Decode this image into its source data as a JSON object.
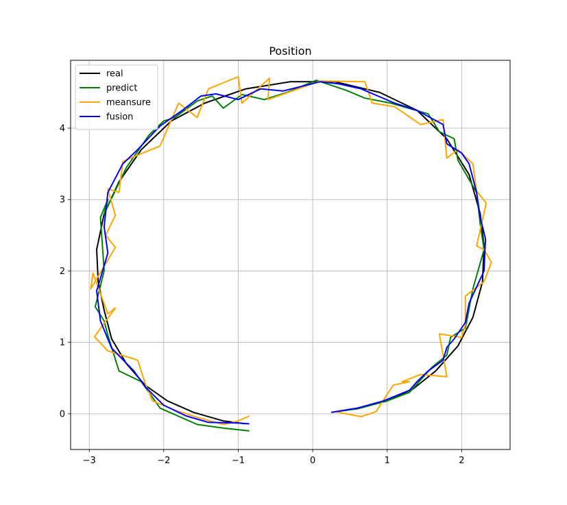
{
  "chart_data": {
    "type": "line",
    "title": "Position",
    "xlabel": "",
    "ylabel": "",
    "xlim": [
      -3.25,
      2.65
    ],
    "ylim": [
      -0.5,
      4.95
    ],
    "xticks": [
      -3,
      -2,
      -1,
      0,
      1,
      2
    ],
    "yticks": [
      0,
      1,
      2,
      3,
      4
    ],
    "grid": true,
    "legend_position": "upper-left",
    "series": [
      {
        "name": "real",
        "color": "#000000",
        "points": [
          [
            0.25,
            0.02
          ],
          [
            0.6,
            0.08
          ],
          [
            1.0,
            0.18
          ],
          [
            1.35,
            0.35
          ],
          [
            1.65,
            0.6
          ],
          [
            1.95,
            0.95
          ],
          [
            2.15,
            1.35
          ],
          [
            2.28,
            1.85
          ],
          [
            2.3,
            2.35
          ],
          [
            2.25,
            2.8
          ],
          [
            2.1,
            3.35
          ],
          [
            1.8,
            3.85
          ],
          [
            1.4,
            4.25
          ],
          [
            0.9,
            4.5
          ],
          [
            0.3,
            4.65
          ],
          [
            -0.3,
            4.65
          ],
          [
            -0.9,
            4.55
          ],
          [
            -1.45,
            4.35
          ],
          [
            -1.9,
            4.1
          ],
          [
            -2.3,
            3.7
          ],
          [
            -2.6,
            3.25
          ],
          [
            -2.8,
            2.8
          ],
          [
            -2.9,
            2.3
          ],
          [
            -2.88,
            1.85
          ],
          [
            -2.8,
            1.45
          ],
          [
            -2.7,
            1.05
          ],
          [
            -2.5,
            0.7
          ],
          [
            -2.25,
            0.4
          ],
          [
            -1.95,
            0.18
          ],
          [
            -1.6,
            0.02
          ],
          [
            -1.2,
            -0.1
          ],
          [
            -0.9,
            -0.14
          ]
        ]
      },
      {
        "name": "predict",
        "color": "#008000",
        "points": [
          [
            0.25,
            0.02
          ],
          [
            0.6,
            0.07
          ],
          [
            1.0,
            0.18
          ],
          [
            1.3,
            0.3
          ],
          [
            1.6,
            0.65
          ],
          [
            1.8,
            0.82
          ],
          [
            1.85,
            1.07
          ],
          [
            2.05,
            1.2
          ],
          [
            2.15,
            1.75
          ],
          [
            2.3,
            2.3
          ],
          [
            2.25,
            2.65
          ],
          [
            2.2,
            3.1
          ],
          [
            1.95,
            3.55
          ],
          [
            1.9,
            3.85
          ],
          [
            1.7,
            3.95
          ],
          [
            1.55,
            4.2
          ],
          [
            1.05,
            4.35
          ],
          [
            0.7,
            4.42
          ],
          [
            0.45,
            4.53
          ],
          [
            0.05,
            4.67
          ],
          [
            -0.35,
            4.5
          ],
          [
            -0.65,
            4.4
          ],
          [
            -0.95,
            4.47
          ],
          [
            -1.2,
            4.28
          ],
          [
            -1.35,
            4.45
          ],
          [
            -1.55,
            4.38
          ],
          [
            -1.85,
            4.15
          ],
          [
            -2.0,
            4.1
          ],
          [
            -2.2,
            3.9
          ],
          [
            -2.5,
            3.45
          ],
          [
            -2.8,
            2.8
          ],
          [
            -2.75,
            3.0
          ],
          [
            -2.85,
            2.75
          ],
          [
            -2.8,
            2.0
          ],
          [
            -2.92,
            1.5
          ],
          [
            -2.8,
            1.3
          ],
          [
            -2.75,
            1.1
          ],
          [
            -2.6,
            0.6
          ],
          [
            -2.3,
            0.45
          ],
          [
            -2.05,
            0.08
          ],
          [
            -1.55,
            -0.15
          ],
          [
            -1.2,
            -0.2
          ],
          [
            -0.85,
            -0.24
          ]
        ]
      },
      {
        "name": "meansure",
        "color": "#FFA500",
        "points": [
          [
            0.3,
            0.03
          ],
          [
            0.65,
            -0.04
          ],
          [
            0.85,
            0.03
          ],
          [
            1.08,
            0.4
          ],
          [
            1.3,
            0.45
          ],
          [
            1.2,
            0.45
          ],
          [
            1.45,
            0.55
          ],
          [
            1.8,
            0.52
          ],
          [
            1.7,
            1.12
          ],
          [
            2.0,
            1.07
          ],
          [
            2.05,
            1.25
          ],
          [
            2.05,
            1.65
          ],
          [
            2.3,
            1.85
          ],
          [
            2.4,
            2.12
          ],
          [
            2.3,
            2.3
          ],
          [
            2.2,
            2.35
          ],
          [
            2.33,
            2.95
          ],
          [
            2.2,
            3.12
          ],
          [
            2.15,
            3.5
          ],
          [
            1.95,
            3.7
          ],
          [
            1.8,
            3.58
          ],
          [
            1.75,
            4.12
          ],
          [
            1.45,
            4.05
          ],
          [
            1.1,
            4.3
          ],
          [
            0.8,
            4.35
          ],
          [
            0.7,
            4.65
          ],
          [
            0.1,
            4.66
          ],
          [
            -0.6,
            4.4
          ],
          [
            -0.58,
            4.7
          ],
          [
            -0.95,
            4.35
          ],
          [
            -1.0,
            4.72
          ],
          [
            -1.4,
            4.55
          ],
          [
            -1.55,
            4.15
          ],
          [
            -1.8,
            4.35
          ],
          [
            -2.05,
            3.75
          ],
          [
            -2.4,
            3.6
          ],
          [
            -2.55,
            3.53
          ],
          [
            -2.6,
            3.1
          ],
          [
            -2.75,
            3.15
          ],
          [
            -2.65,
            2.78
          ],
          [
            -2.78,
            2.5
          ],
          [
            -2.65,
            2.33
          ],
          [
            -2.98,
            1.75
          ],
          [
            -2.95,
            1.97
          ],
          [
            -2.75,
            1.4
          ],
          [
            -2.65,
            1.48
          ],
          [
            -2.93,
            1.08
          ],
          [
            -2.75,
            0.88
          ],
          [
            -2.5,
            0.8
          ],
          [
            -2.35,
            0.75
          ],
          [
            -2.25,
            0.43
          ],
          [
            -2.15,
            0.18
          ],
          [
            -1.85,
            0.05
          ],
          [
            -1.55,
            -0.05
          ],
          [
            -1.2,
            -0.15
          ],
          [
            -1.0,
            -0.1
          ],
          [
            -0.85,
            -0.03
          ]
        ]
      },
      {
        "name": "fusion",
        "color": "#0000FF",
        "points": [
          [
            0.25,
            0.02
          ],
          [
            0.6,
            0.08
          ],
          [
            0.95,
            0.18
          ],
          [
            1.3,
            0.33
          ],
          [
            1.4,
            0.45
          ],
          [
            1.55,
            0.6
          ],
          [
            1.75,
            0.75
          ],
          [
            1.8,
            0.93
          ],
          [
            1.9,
            1.05
          ],
          [
            2.05,
            1.28
          ],
          [
            2.1,
            1.55
          ],
          [
            2.3,
            2.0
          ],
          [
            2.32,
            2.45
          ],
          [
            2.25,
            2.75
          ],
          [
            2.2,
            3.1
          ],
          [
            2.1,
            3.5
          ],
          [
            2.0,
            3.65
          ],
          [
            1.8,
            3.78
          ],
          [
            1.75,
            4.05
          ],
          [
            1.4,
            4.25
          ],
          [
            1.1,
            4.35
          ],
          [
            0.65,
            4.55
          ],
          [
            0.35,
            4.62
          ],
          [
            0.1,
            4.65
          ],
          [
            -0.4,
            4.52
          ],
          [
            -0.7,
            4.55
          ],
          [
            -1.0,
            4.4
          ],
          [
            -1.3,
            4.48
          ],
          [
            -1.5,
            4.45
          ],
          [
            -1.75,
            4.25
          ],
          [
            -2.05,
            4.03
          ],
          [
            -2.35,
            3.7
          ],
          [
            -2.55,
            3.5
          ],
          [
            -2.75,
            3.1
          ],
          [
            -2.8,
            2.62
          ],
          [
            -2.75,
            2.25
          ],
          [
            -2.9,
            1.72
          ],
          [
            -2.85,
            1.3
          ],
          [
            -2.7,
            0.92
          ],
          [
            -2.4,
            0.6
          ],
          [
            -2.25,
            0.38
          ],
          [
            -2.0,
            0.12
          ],
          [
            -1.7,
            -0.03
          ],
          [
            -1.4,
            -0.12
          ],
          [
            -1.0,
            -0.13
          ],
          [
            -0.85,
            -0.14
          ]
        ]
      }
    ]
  }
}
